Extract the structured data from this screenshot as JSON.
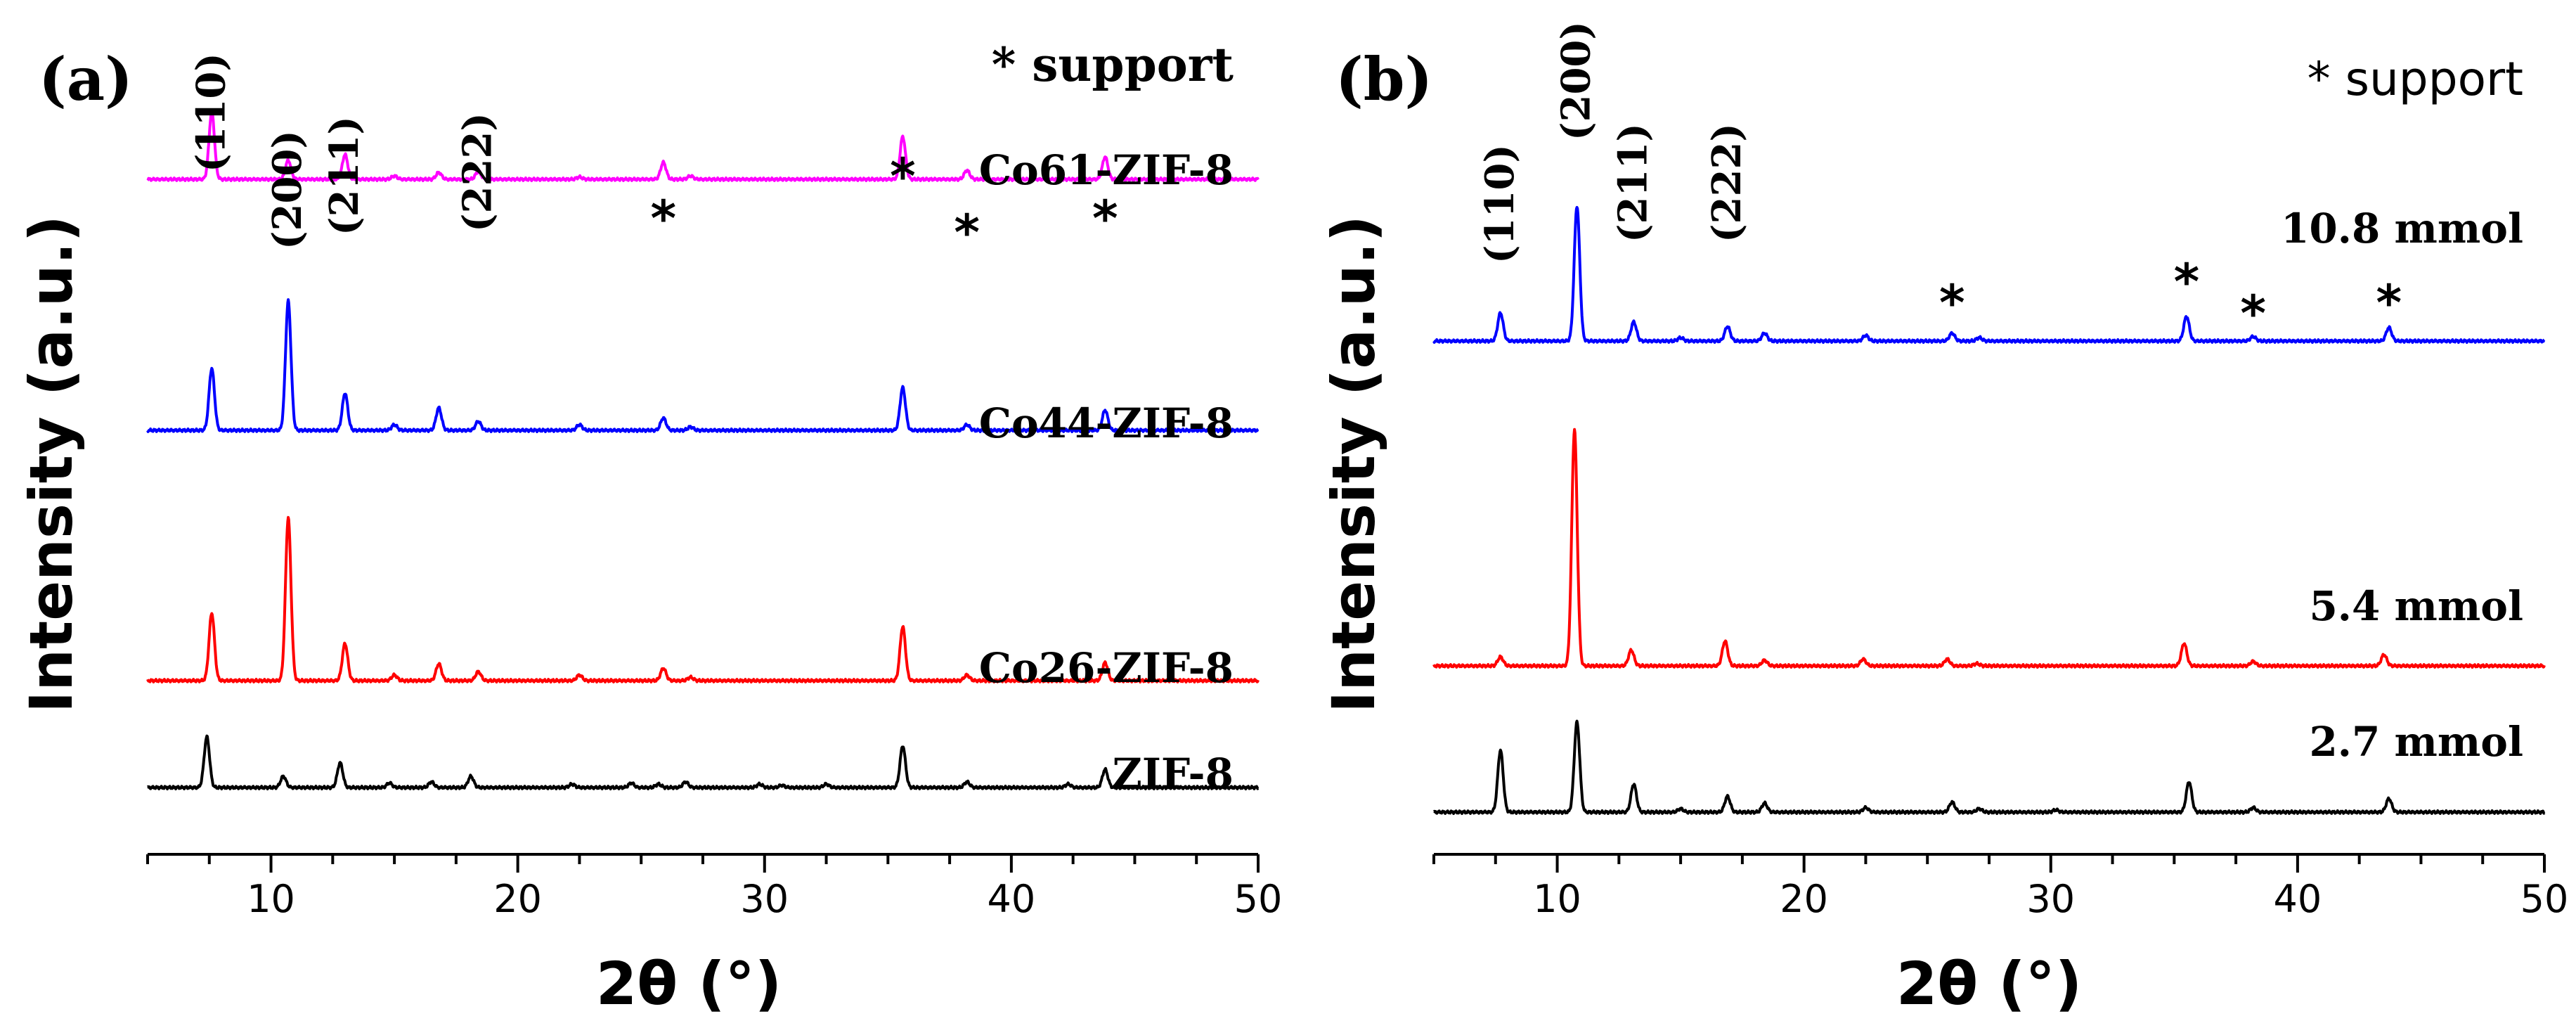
{
  "chart_data": [
    {
      "panel_label": "(a)",
      "type": "line",
      "xlabel": "2θ (°)",
      "ylabel": "Intensity (a.u.)",
      "xlim": [
        5,
        50
      ],
      "xticks": [
        "10",
        "20",
        "30",
        "40",
        "50"
      ],
      "legend_note": "* support",
      "series": [
        {
          "name": "ZIF-8",
          "color": "#000000",
          "peaks": [
            [
              7.4,
              45
            ],
            [
              10.5,
              10
            ],
            [
              12.8,
              22
            ],
            [
              14.8,
              4
            ],
            [
              16.5,
              5
            ],
            [
              18.1,
              10
            ],
            [
              22.2,
              3
            ],
            [
              24.6,
              4
            ],
            [
              25.7,
              3
            ],
            [
              26.8,
              5
            ],
            [
              29.8,
              3
            ],
            [
              30.7,
              2
            ],
            [
              32.5,
              3
            ],
            [
              35.6,
              37
            ],
            [
              38.2,
              5
            ],
            [
              42.3,
              3
            ],
            [
              43.8,
              16
            ]
          ]
        },
        {
          "name": "Co26-ZIF-8",
          "color": "#ff0000",
          "peaks": [
            [
              7.6,
              60
            ],
            [
              10.7,
              145
            ],
            [
              13.0,
              33
            ],
            [
              15.0,
              5
            ],
            [
              16.8,
              15
            ],
            [
              18.4,
              8
            ],
            [
              22.5,
              5
            ],
            [
              25.9,
              11
            ],
            [
              27.0,
              3
            ],
            [
              35.6,
              48
            ],
            [
              38.2,
              5
            ],
            [
              43.8,
              16
            ]
          ]
        },
        {
          "name": "Co44-ZIF-8",
          "color": "#0000ff",
          "peaks": [
            [
              7.6,
              55
            ],
            [
              10.7,
              115
            ],
            [
              13.0,
              33
            ],
            [
              15.0,
              5
            ],
            [
              16.8,
              20
            ],
            [
              18.4,
              8
            ],
            [
              22.5,
              5
            ],
            [
              25.9,
              11
            ],
            [
              27.0,
              3
            ],
            [
              35.6,
              38
            ],
            [
              38.2,
              5
            ],
            [
              43.8,
              18
            ]
          ]
        },
        {
          "name": "Co61-ZIF-8",
          "color": "#ff00ff",
          "peaks": [
            [
              7.6,
              60
            ],
            [
              10.7,
              17
            ],
            [
              13.0,
              22
            ],
            [
              15.0,
              3
            ],
            [
              16.8,
              6
            ],
            [
              18.4,
              7
            ],
            [
              22.5,
              2
            ],
            [
              25.9,
              15
            ],
            [
              27.0,
              3
            ],
            [
              35.6,
              38
            ],
            [
              38.2,
              8
            ],
            [
              43.8,
              20
            ]
          ]
        }
      ],
      "annotations": [
        {
          "text": "(110)",
          "x": 7.6
        },
        {
          "text": "(200)",
          "x": 10.7
        },
        {
          "text": "(211)",
          "x": 13.0
        },
        {
          "text": "(222)",
          "x": 18.4
        },
        {
          "text": "*",
          "x": 25.9
        },
        {
          "text": "*",
          "x": 35.6
        },
        {
          "text": "*",
          "x": 38.2
        },
        {
          "text": "*",
          "x": 43.8
        }
      ]
    },
    {
      "panel_label": "(b)",
      "type": "line",
      "xlabel": "2θ (°)",
      "ylabel": "Intensity (a.u.)",
      "xlim": [
        5,
        50
      ],
      "xticks": [
        "10",
        "20",
        "30",
        "40",
        "50"
      ],
      "legend_note": "* support",
      "series": [
        {
          "name": "2.7 mmol",
          "color": "#000000",
          "peaks": [
            [
              7.7,
              55
            ],
            [
              10.8,
              80
            ],
            [
              13.1,
              25
            ],
            [
              15.0,
              3
            ],
            [
              16.9,
              14
            ],
            [
              18.4,
              8
            ],
            [
              22.5,
              4
            ],
            [
              26.0,
              9
            ],
            [
              27.1,
              3
            ],
            [
              30.2,
              2
            ],
            [
              35.6,
              27
            ],
            [
              38.2,
              4
            ],
            [
              43.7,
              12
            ]
          ]
        },
        {
          "name": "5.4 mmol",
          "color": "#ff0000",
          "peaks": [
            [
              7.7,
              8
            ],
            [
              10.7,
              210
            ],
            [
              13.0,
              14
            ],
            [
              16.8,
              22
            ],
            [
              18.4,
              5
            ],
            [
              22.4,
              6
            ],
            [
              25.8,
              6
            ],
            [
              27.0,
              2
            ],
            [
              35.4,
              20
            ],
            [
              38.2,
              4
            ],
            [
              43.5,
              10
            ]
          ]
        },
        {
          "name": "10.8 mmol",
          "color": "#0000ff",
          "peaks": [
            [
              7.7,
              25
            ],
            [
              10.8,
              120
            ],
            [
              13.1,
              17
            ],
            [
              15.0,
              3
            ],
            [
              16.9,
              13
            ],
            [
              18.4,
              7
            ],
            [
              22.5,
              5
            ],
            [
              26.0,
              7
            ],
            [
              27.1,
              3
            ],
            [
              35.5,
              22
            ],
            [
              38.2,
              4
            ],
            [
              43.7,
              12
            ]
          ]
        }
      ],
      "annotations": [
        {
          "text": "(110)",
          "x": 7.7
        },
        {
          "text": "(200)",
          "x": 10.8
        },
        {
          "text": "(211)",
          "x": 13.1
        },
        {
          "text": "(222)",
          "x": 16.9
        },
        {
          "text": "*",
          "x": 26.0
        },
        {
          "text": "*",
          "x": 35.5
        },
        {
          "text": "*",
          "x": 38.2
        },
        {
          "text": "*",
          "x": 43.7
        }
      ]
    }
  ]
}
